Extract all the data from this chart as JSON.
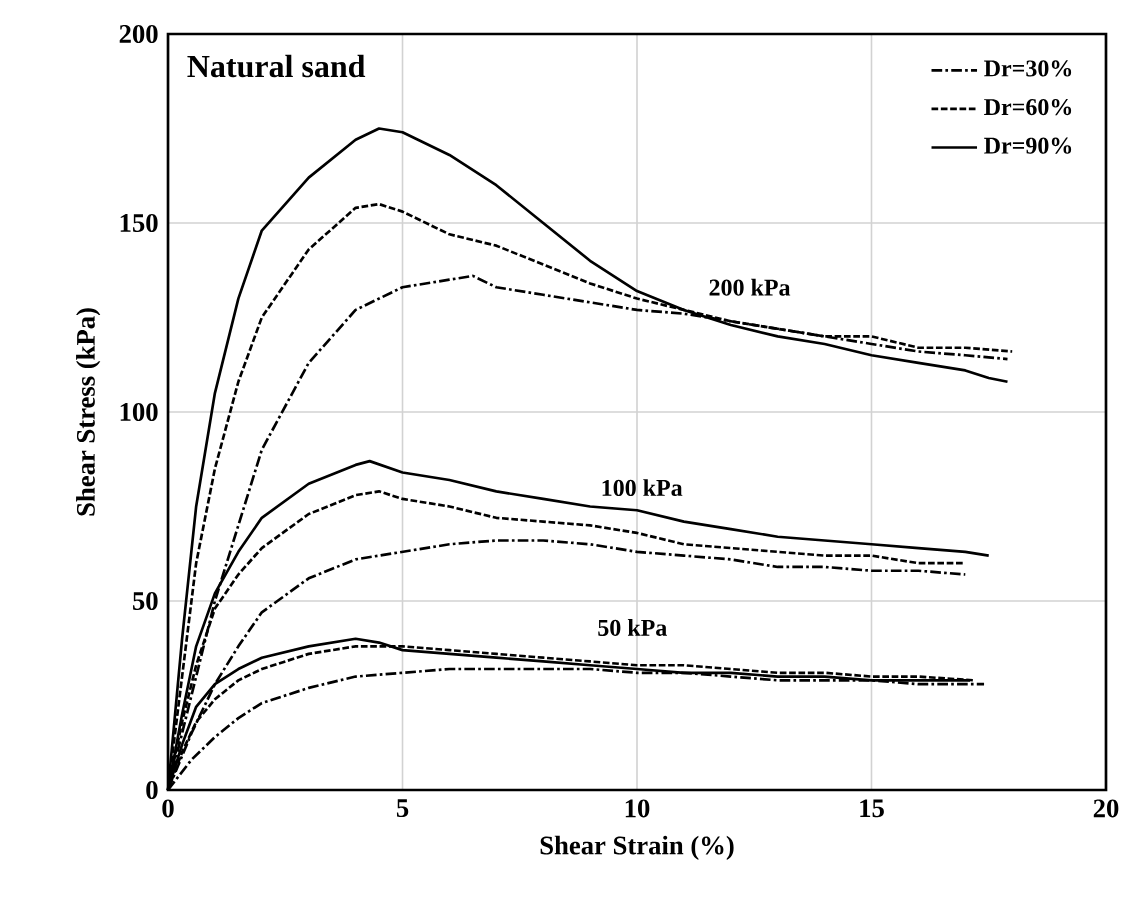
{
  "chart_data": {
    "type": "line",
    "xlabel": "Shear Strain (%)",
    "ylabel": "Shear Stress (kPa)",
    "xlim": [
      0,
      20
    ],
    "ylim": [
      0,
      200
    ],
    "xticks": [
      0,
      5,
      10,
      15,
      20
    ],
    "yticks": [
      0,
      50,
      100,
      150,
      200
    ],
    "grid": true,
    "legend": "top right",
    "marker": "none",
    "annotations": [
      "Natural sand",
      "200 kPa",
      "100 kPa",
      "50 kPa"
    ],
    "series": [
      {
        "name": "Dr=30%",
        "color": "#000000",
        "line_style": "dashdot",
        "x": [
          0,
          0.5,
          1,
          1.5,
          2,
          3,
          4,
          5,
          6,
          6.5,
          7,
          8,
          9,
          10,
          11,
          12,
          13,
          14,
          15,
          16,
          17,
          17.9
        ],
        "values": [
          0,
          25,
          50,
          70,
          90,
          113,
          127,
          133,
          135,
          136,
          133,
          131,
          129,
          127,
          126,
          124,
          122,
          120,
          118,
          116,
          115,
          114
        ]
      },
      {
        "name": "Dr=60%",
        "color": "#000000",
        "line_style": "dashed",
        "x": [
          0,
          0.3,
          0.6,
          1,
          1.5,
          2,
          3,
          4,
          4.5,
          5,
          6,
          7,
          8,
          9,
          10,
          11,
          12,
          13,
          14,
          15,
          16,
          17,
          18
        ],
        "values": [
          0,
          30,
          60,
          85,
          108,
          125,
          143,
          154,
          155,
          153,
          147,
          144,
          139,
          134,
          130,
          127,
          124,
          122,
          120,
          120,
          117,
          117,
          116
        ]
      },
      {
        "name": "Dr=90%",
        "color": "#000000",
        "line_style": "solid",
        "x": [
          0,
          0.3,
          0.6,
          1,
          1.5,
          2,
          3,
          4,
          4.5,
          5,
          6,
          7,
          8,
          9,
          10,
          11,
          12,
          13,
          14,
          15,
          16,
          17,
          17.5,
          17.9
        ],
        "values": [
          0,
          40,
          75,
          105,
          130,
          148,
          162,
          172,
          175,
          174,
          168,
          160,
          150,
          140,
          132,
          127,
          123,
          120,
          118,
          115,
          113,
          111,
          109,
          108
        ]
      },
      {
        "color": "#000000",
        "line_style": "dashdot",
        "x": [
          0,
          0.5,
          1,
          1.5,
          2,
          3,
          4,
          5,
          6,
          7,
          8,
          9,
          10,
          11,
          12,
          13,
          14,
          15,
          16,
          17
        ],
        "values": [
          0,
          15,
          28,
          38,
          47,
          56,
          61,
          63,
          65,
          66,
          66,
          65,
          63,
          62,
          61,
          59,
          59,
          58,
          58,
          57
        ]
      },
      {
        "color": "#000000",
        "line_style": "dashed",
        "x": [
          0,
          0.3,
          0.6,
          1,
          1.5,
          2,
          3,
          4,
          4.5,
          5,
          6,
          7,
          8,
          9,
          10,
          11,
          12,
          13,
          14,
          15,
          16,
          17
        ],
        "values": [
          0,
          18,
          33,
          48,
          57,
          64,
          73,
          78,
          79,
          77,
          75,
          72,
          71,
          70,
          68,
          65,
          64,
          63,
          62,
          62,
          60,
          60
        ]
      },
      {
        "color": "#000000",
        "line_style": "solid",
        "x": [
          0,
          0.3,
          0.6,
          1,
          1.5,
          2,
          3,
          4,
          4.3,
          5,
          6,
          7,
          8,
          9,
          10,
          11,
          12,
          13,
          14,
          15,
          16,
          17,
          17.5
        ],
        "values": [
          0,
          20,
          38,
          52,
          63,
          72,
          81,
          86,
          87,
          84,
          82,
          79,
          77,
          75,
          74,
          71,
          69,
          67,
          66,
          65,
          64,
          63,
          62
        ]
      },
      {
        "color": "#000000",
        "line_style": "dashdot",
        "x": [
          0,
          0.5,
          1,
          1.5,
          2,
          3,
          4,
          5,
          6,
          7,
          8,
          9,
          10,
          11,
          12,
          13,
          14,
          15,
          16,
          17.4
        ],
        "values": [
          0,
          8,
          14,
          19,
          23,
          27,
          30,
          31,
          32,
          32,
          32,
          32,
          31,
          31,
          30,
          29,
          29,
          29,
          28,
          28
        ]
      },
      {
        "color": "#000000",
        "line_style": "dashed",
        "x": [
          0,
          0.3,
          0.6,
          1,
          1.5,
          2,
          3,
          4,
          4.5,
          5,
          6,
          7,
          8,
          9,
          10,
          11,
          12,
          13,
          14,
          15,
          16,
          17.2
        ],
        "values": [
          0,
          10,
          18,
          24,
          29,
          32,
          36,
          38,
          38,
          38,
          37,
          36,
          35,
          34,
          33,
          33,
          32,
          31,
          31,
          30,
          30,
          29
        ]
      },
      {
        "color": "#000000",
        "line_style": "solid",
        "x": [
          0,
          0.3,
          0.6,
          1,
          1.5,
          2,
          3,
          4,
          4.5,
          5,
          6,
          7,
          8,
          9,
          10,
          11,
          12,
          13,
          14,
          15,
          16,
          17.1
        ],
        "values": [
          0,
          12,
          22,
          28,
          32,
          35,
          38,
          40,
          39,
          37,
          36,
          35,
          34,
          33,
          32,
          31,
          31,
          30,
          30,
          29,
          29,
          29
        ]
      }
    ]
  }
}
